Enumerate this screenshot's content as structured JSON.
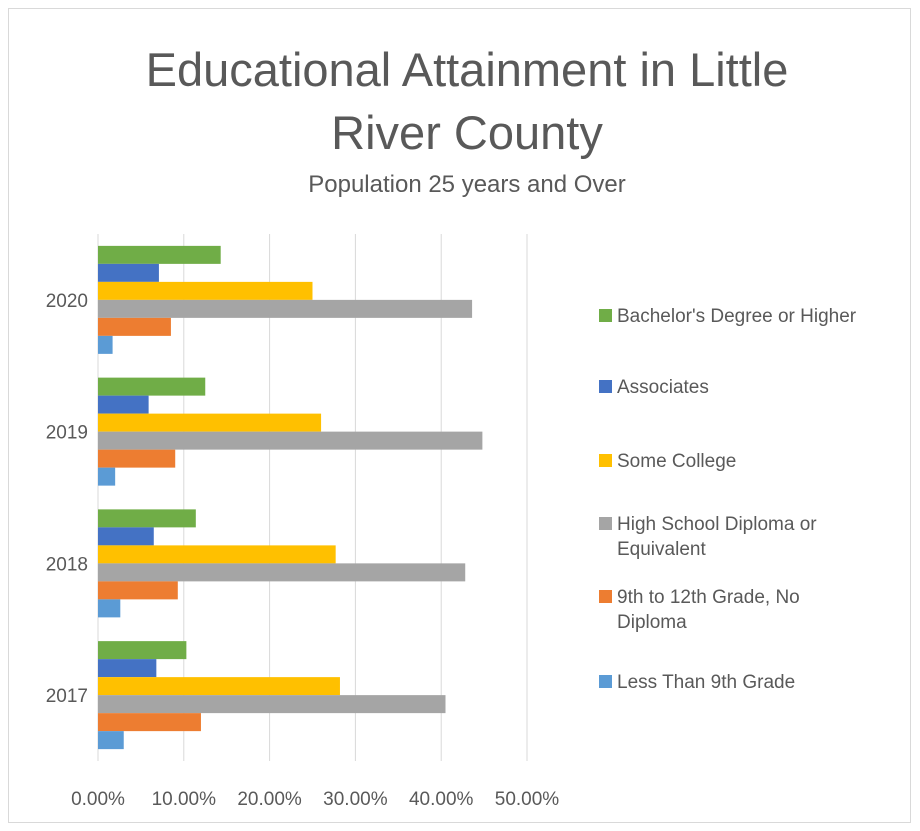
{
  "chart_data": {
    "type": "bar",
    "orientation": "horizontal",
    "title": "Educational Attainment in Little River County",
    "title_lines": [
      "Educational Attainment in Little",
      "River County"
    ],
    "subtitle": "Population 25 years and Over",
    "categories": [
      "2020",
      "2019",
      "2018",
      "2017"
    ],
    "xlim": [
      0,
      50
    ],
    "xticks": [
      "0.00%",
      "10.00%",
      "20.00%",
      "30.00%",
      "40.00%",
      "50.00%"
    ],
    "xtick_values": [
      0,
      10,
      20,
      30,
      40,
      50
    ],
    "grid": true,
    "legend_position": "right",
    "series": [
      {
        "name": "Bachelor's Degree or Higher",
        "legend_lines": [
          "Bachelor's Degree or Higher"
        ],
        "color": "#70ad47",
        "values": [
          14.3,
          12.5,
          11.4,
          10.3
        ]
      },
      {
        "name": "Associates",
        "legend_lines": [
          "Associates"
        ],
        "color": "#4472c4",
        "values": [
          7.1,
          5.9,
          6.5,
          6.8
        ]
      },
      {
        "name": "Some College",
        "legend_lines": [
          "Some College"
        ],
        "color": "#ffc000",
        "values": [
          25.0,
          26.0,
          27.7,
          28.2
        ]
      },
      {
        "name": "High School Diploma or Equivalent",
        "legend_lines": [
          "High School Diploma or",
          "Equivalent"
        ],
        "color": "#a5a5a5",
        "values": [
          43.6,
          44.8,
          42.8,
          40.5
        ]
      },
      {
        "name": "9th to 12th Grade, No Diploma",
        "legend_lines": [
          "9th to 12th Grade, No",
          "Diploma"
        ],
        "color": "#ed7d31",
        "values": [
          8.5,
          9.0,
          9.3,
          12.0
        ]
      },
      {
        "name": "Less Than 9th Grade",
        "legend_lines": [
          "Less Than 9th Grade"
        ],
        "color": "#5b9bd5",
        "values": [
          1.7,
          2.0,
          2.6,
          3.0
        ]
      }
    ]
  }
}
